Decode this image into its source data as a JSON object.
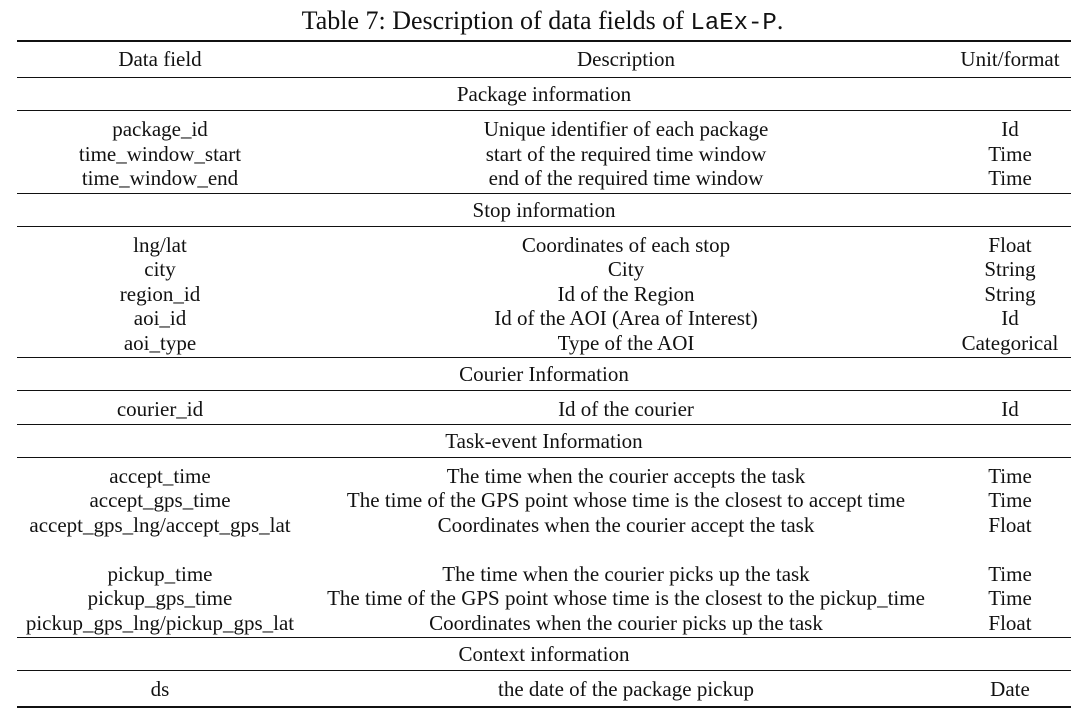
{
  "caption": {
    "prefix": "Table 7: Description of data fields of ",
    "dataset": "LaEx-P",
    "suffix": "."
  },
  "table": {
    "headers": [
      "Data field",
      "Description",
      "Unit/format"
    ],
    "sections": [
      {
        "title": "Package information",
        "rows": [
          [
            "package_id",
            "Unique identifier of each package",
            "Id"
          ],
          [
            "time_window_start",
            "start of the required time window",
            "Time"
          ],
          [
            "time_window_end",
            "end of the required time window",
            "Time"
          ]
        ]
      },
      {
        "title": "Stop information",
        "rows": [
          [
            "lng/lat",
            "Coordinates of each stop",
            "Float"
          ],
          [
            "city",
            "City",
            "String"
          ],
          [
            "region_id",
            "Id of the Region",
            "String"
          ],
          [
            "aoi_id",
            "Id of the AOI (Area of Interest)",
            "Id"
          ],
          [
            "aoi_type",
            "Type of the AOI",
            "Categorical"
          ]
        ]
      },
      {
        "title": "Courier Information",
        "rows": [
          [
            "courier_id",
            "Id of the courier",
            "Id"
          ]
        ]
      },
      {
        "title": "Task-event Information",
        "rows": [
          [
            "accept_time",
            "The time when the courier accepts the task",
            "Time"
          ],
          [
            "accept_gps_time",
            "The time of the GPS point whose time is the closest to accept time",
            "Time"
          ],
          [
            "accept_gps_lng/accept_gps_lat",
            "Coordinates when the courier accept the task",
            "Float"
          ],
          [
            "pickup_time",
            "The time when the courier picks up the task",
            "Time"
          ],
          [
            "pickup_gps_time",
            "The time of the GPS point whose time is the closest to the pickup_time",
            "Time"
          ],
          [
            "pickup_gps_lng/pickup_gps_lat",
            "Coordinates when the courier picks up the task",
            "Float"
          ]
        ]
      },
      {
        "title": "Context information",
        "rows": [
          [
            "ds",
            "the date of the package pickup",
            "Date"
          ]
        ]
      }
    ]
  }
}
